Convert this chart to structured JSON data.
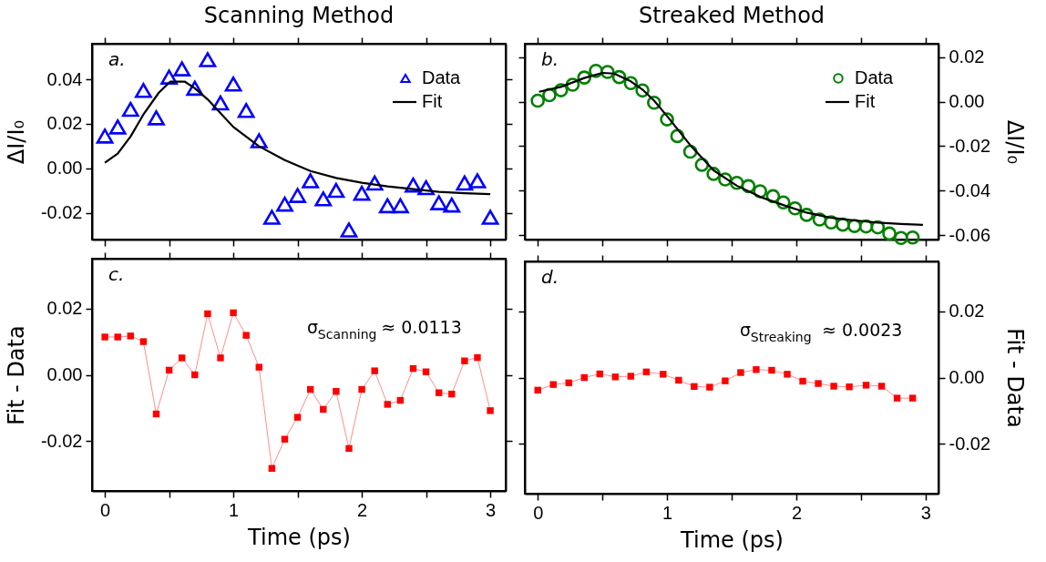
{
  "chart_data": [
    {
      "type": "scatter",
      "title": "Scanning Method",
      "ylabel": "ΔI/I₀",
      "annotations": [
        "a."
      ],
      "xlim": [
        -0.1,
        3.12
      ],
      "xticks": [
        0,
        {
          "value": 0.5,
          "label": null
        },
        1,
        {
          "value": 1.5,
          "label": null
        },
        2,
        {
          "value": 2.5,
          "label": null
        },
        3
      ],
      "ylim": [
        -0.032,
        0.056
      ],
      "yticks": [
        -0.02,
        {
          "value": 0,
          "label": "0.00"
        },
        0.02,
        0.04
      ],
      "tick_labels": "y",
      "legend": "top right",
      "series": [
        {
          "name": "Data",
          "type": "scatter",
          "marker": "triangle",
          "color": "#0000ff",
          "x": [
            0,
            0.1,
            0.2,
            0.3,
            0.4,
            0.5,
            0.6,
            0.7,
            0.8,
            0.9,
            1.0,
            1.1,
            1.2,
            1.3,
            1.4,
            1.5,
            1.6,
            1.7,
            1.8,
            1.9,
            2.0,
            2.1,
            2.2,
            2.3,
            2.4,
            2.5,
            2.6,
            2.7,
            2.8,
            2.9,
            3.0
          ],
          "values": [
            0.0145,
            0.0186,
            0.0265,
            0.035,
            0.0227,
            0.041,
            0.0447,
            0.036,
            0.0488,
            0.0294,
            0.0379,
            0.026,
            0.0124,
            -0.022,
            -0.0161,
            -0.0122,
            -0.0056,
            -0.0137,
            -0.0099,
            -0.0277,
            -0.0112,
            -0.0066,
            -0.0168,
            -0.0168,
            -0.0075,
            -0.0087,
            -0.0155,
            -0.0165,
            -0.0066,
            -0.0056,
            -0.022
          ]
        },
        {
          "name": "Fit",
          "type": "line",
          "color": "#000000",
          "x": [
            0,
            0.1,
            0.2,
            0.3,
            0.42,
            0.51,
            0.62,
            0.7,
            0.8,
            0.9,
            1.0,
            1.2,
            1.4,
            1.6,
            1.8,
            2.0,
            2.2,
            2.4,
            2.6,
            2.8,
            3.0
          ],
          "values": [
            0.0025,
            0.0066,
            0.0143,
            0.0242,
            0.034,
            0.039,
            0.039,
            0.036,
            0.031,
            0.0248,
            0.0186,
            0.0099,
            0.0037,
            -0.0012,
            -0.0043,
            -0.0065,
            -0.0081,
            -0.0093,
            -0.0106,
            -0.0112,
            -0.0116
          ]
        }
      ]
    },
    {
      "type": "scatter",
      "title": "Streaked Method",
      "y2label": "ΔI/I₀",
      "annotations": [
        "b."
      ],
      "xlim": [
        -0.1,
        3.1
      ],
      "xticks": [
        0,
        {
          "value": 0.5,
          "label": null
        },
        1,
        {
          "value": 1.5,
          "label": null
        },
        2,
        {
          "value": 2.5,
          "label": null
        },
        3
      ],
      "y2lim": [
        -0.062,
        0.026
      ],
      "y2ticks": [
        -0.06,
        -0.04,
        -0.02,
        {
          "value": 0,
          "label": "0.00"
        },
        0.02
      ],
      "tick_labels": "y",
      "legend": "top right",
      "series": [
        {
          "name": "Data",
          "type": "scatter",
          "marker": "circle",
          "axis": "y2",
          "color": "#008000",
          "x": [
            0,
            0.09,
            0.18,
            0.27,
            0.36,
            0.45,
            0.54,
            0.63,
            0.72,
            0.81,
            0.9,
            1.0,
            1.08,
            1.18,
            1.27,
            1.36,
            1.45,
            1.54,
            1.63,
            1.72,
            1.82,
            1.9,
            1.99,
            2.08,
            2.18,
            2.27,
            2.36,
            2.45,
            2.54,
            2.63,
            2.72,
            2.81,
            2.9
          ],
          "values": [
            0.0004,
            0.0029,
            0.0051,
            0.0076,
            0.0108,
            0.0138,
            0.0133,
            0.011,
            0.0083,
            0.005,
            -0.0005,
            -0.008,
            -0.0155,
            -0.0225,
            -0.0284,
            -0.0325,
            -0.035,
            -0.0365,
            -0.038,
            -0.0403,
            -0.0425,
            -0.0453,
            -0.048,
            -0.0509,
            -0.053,
            -0.0543,
            -0.0553,
            -0.0559,
            -0.0561,
            -0.0565,
            -0.0593,
            -0.0613,
            -0.0611
          ]
        },
        {
          "name": "Fit",
          "type": "line",
          "axis": "y2",
          "color": "#000000",
          "x": [
            0.01,
            0.18,
            0.36,
            0.5,
            0.59,
            0.72,
            0.81,
            0.9,
            1.0,
            1.18,
            1.36,
            1.54,
            1.72,
            1.9,
            2.08,
            2.26,
            2.45,
            2.63,
            2.81,
            2.98
          ],
          "values": [
            0.0044,
            0.0066,
            0.0106,
            0.0129,
            0.0126,
            0.0091,
            0.0054,
            0.0004,
            -0.0065,
            -0.0196,
            -0.0309,
            -0.0378,
            -0.0428,
            -0.0465,
            -0.0499,
            -0.0521,
            -0.0534,
            -0.0544,
            -0.055,
            -0.0554
          ]
        }
      ]
    },
    {
      "type": "line",
      "xlabel": "Time (ps)",
      "ylabel": "Fit - Data",
      "annotations": [
        "c.",
        "σ$_{Scanning}$ ≈ 0.0113"
      ],
      "xlim": [
        -0.1,
        3.12
      ],
      "xticks": [
        0,
        {
          "value": 0.5,
          "label": null
        },
        1,
        {
          "value": 1.5,
          "label": null
        },
        2,
        {
          "value": 2.5,
          "label": null
        },
        3
      ],
      "ylim": [
        -0.035,
        0.035
      ],
      "yticks": [
        -0.02,
        {
          "value": 0,
          "label": "0.00"
        },
        0.02
      ],
      "marker": "square",
      "series": [
        {
          "color": "#ff0000",
          "x": [
            0,
            0.1,
            0.2,
            0.3,
            0.4,
            0.5,
            0.6,
            0.7,
            0.8,
            0.9,
            1.0,
            1.1,
            1.2,
            1.3,
            1.4,
            1.5,
            1.6,
            1.7,
            1.8,
            1.9,
            2.0,
            2.1,
            2.2,
            2.3,
            2.4,
            2.5,
            2.6,
            2.7,
            2.8,
            2.9,
            3.0
          ],
          "values": [
            0.0114,
            0.0114,
            0.0117,
            0.01,
            -0.0118,
            0.0014,
            0.0051,
            0,
            0.0184,
            0.0051,
            0.0187,
            0.0119,
            0.0023,
            -0.0282,
            -0.0194,
            -0.0128,
            -0.0044,
            -0.0104,
            -0.005,
            -0.0222,
            -0.0044,
            0.0012,
            -0.0089,
            -0.0077,
            0.0019,
            0.0009,
            -0.0054,
            -0.0058,
            0.0042,
            0.0052,
            -0.0108
          ]
        }
      ]
    },
    {
      "type": "line",
      "xlabel": "Time (ps)",
      "y2label": "Fit - Data",
      "annotations": [
        "d.",
        "σ$_{Streaking}$ ≈ 0.0023"
      ],
      "xlim": [
        -0.1,
        3.1
      ],
      "xticks": [
        0,
        {
          "value": 0.5,
          "label": null
        },
        1,
        {
          "value": 1.5,
          "label": null
        },
        2,
        {
          "value": 2.5,
          "label": null
        },
        3
      ],
      "y2lim": [
        -0.035,
        0.035
      ],
      "y2ticks": [
        -0.02,
        {
          "value": 0,
          "label": "0.00"
        },
        0.02
      ],
      "marker": "square",
      "series": [
        {
          "color": "#ff0000",
          "axis": "y2",
          "x": [
            0,
            0.12,
            0.24,
            0.36,
            0.48,
            0.6,
            0.72,
            0.84,
            0.97,
            1.09,
            1.21,
            1.33,
            1.45,
            1.57,
            1.69,
            1.81,
            1.93,
            2.05,
            2.17,
            2.29,
            2.41,
            2.54,
            2.66,
            2.78,
            2.9
          ],
          "values": [
            -0.0038,
            -0.0021,
            -0.0016,
            0,
            0.0011,
            0.0002,
            0.0004,
            0.0017,
            0.001,
            -0.0008,
            -0.0027,
            -0.0029,
            -0.001,
            0.0015,
            0.0024,
            0.0022,
            0.001,
            -0.0011,
            -0.0018,
            -0.0026,
            -0.0028,
            -0.0023,
            -0.0026,
            -0.0062,
            -0.0062
          ]
        }
      ]
    }
  ]
}
